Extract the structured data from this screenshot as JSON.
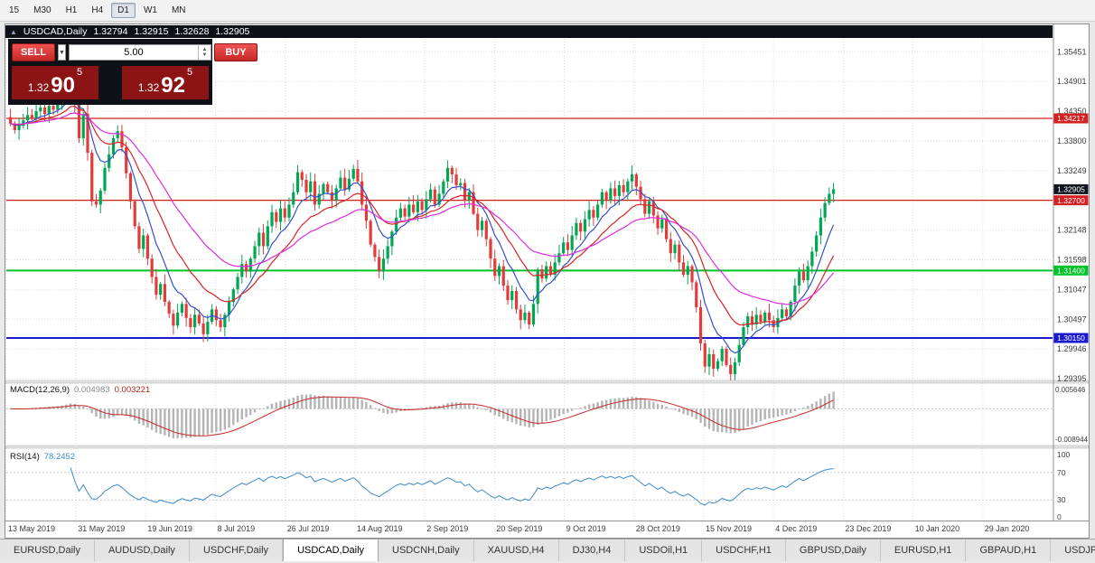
{
  "app": {
    "toolbar": {
      "timeframes": [
        {
          "label": "15",
          "active": false
        },
        {
          "label": "M30",
          "active": false
        },
        {
          "label": "H1",
          "active": false
        },
        {
          "label": "H4",
          "active": false
        },
        {
          "label": "D1",
          "active": true
        },
        {
          "label": "W1",
          "active": false
        },
        {
          "label": "MN",
          "active": false
        }
      ]
    }
  },
  "chart_header": {
    "symbol": "USDCAD,Daily",
    "open": "1.32794",
    "high": "1.32915",
    "low": "1.32628",
    "close": "1.32905"
  },
  "one_click": {
    "sell_label": "SELL",
    "buy_label": "BUY",
    "lot": "5.00",
    "bid": {
      "base": "1.32",
      "pips": "90",
      "point": "5"
    },
    "ask": {
      "base": "1.32",
      "pips": "92",
      "point": "5"
    }
  },
  "price_axis": {
    "ticks": [
      "1.35451",
      "1.34901",
      "1.34350",
      "1.33800",
      "1.33249",
      "1.32699",
      "1.32148",
      "1.31598",
      "1.31047",
      "1.30497",
      "1.29946",
      "1.29395"
    ]
  },
  "chart_data": {
    "type": "candlestick",
    "symbol": "USDCAD",
    "timeframe": "Daily",
    "price_min": 1.2938,
    "price_max": 1.3564,
    "up_color": "#00a651",
    "down_color": "#e23b3b",
    "closes": [
      1.3412,
      1.34,
      1.3408,
      1.3418,
      1.3428,
      1.3422,
      1.3435,
      1.3442,
      1.343,
      1.3445,
      1.3438,
      1.345,
      1.3462,
      1.3478,
      1.35,
      1.3448,
      1.3385,
      1.343,
      1.3358,
      1.3268,
      1.3262,
      1.3288,
      1.333,
      1.3355,
      1.3385,
      1.3398,
      1.3368,
      1.332,
      1.3268,
      1.3222,
      1.318,
      1.3205,
      1.3162,
      1.3128,
      1.3095,
      1.3115,
      1.3082,
      1.306,
      1.3038,
      1.3062,
      1.3078,
      1.3052,
      1.3035,
      1.3058,
      1.3042,
      1.3022,
      1.3045,
      1.3068,
      1.3048,
      1.3035,
      1.3058,
      1.3082,
      1.3105,
      1.3128,
      1.3152,
      1.3138,
      1.3162,
      1.3185,
      1.321,
      1.3185,
      1.3222,
      1.3248,
      1.323,
      1.3255,
      1.3238,
      1.3262,
      1.3285,
      1.3322,
      1.3308,
      1.3285,
      1.3305,
      1.3262,
      1.3282,
      1.33,
      1.3285,
      1.327,
      1.3292,
      1.3312,
      1.329,
      1.331,
      1.3328,
      1.3305,
      1.3262,
      1.3232,
      1.3188,
      1.3165,
      1.3138,
      1.3162,
      1.3185,
      1.3212,
      1.3238,
      1.3255,
      1.324,
      1.3262,
      1.3248,
      1.3268,
      1.3252,
      1.3272,
      1.329,
      1.3262,
      1.3282,
      1.3305,
      1.333,
      1.3318,
      1.3298,
      1.3302,
      1.327,
      1.3285,
      1.3245,
      1.3215,
      1.3232,
      1.3198,
      1.3162,
      1.313,
      1.3148,
      1.3112,
      1.3085,
      1.3102,
      1.3068,
      1.3048,
      1.3062,
      1.304,
      1.3078,
      1.3142,
      1.3125,
      1.3148,
      1.3132,
      1.3155,
      1.3172,
      1.3192,
      1.3178,
      1.3205,
      1.3228,
      1.3212,
      1.3235,
      1.3252,
      1.3238,
      1.3262,
      1.3285,
      1.327,
      1.3292,
      1.3278,
      1.3298,
      1.3285,
      1.3305,
      1.3318,
      1.3295,
      1.3272,
      1.3245,
      1.3268,
      1.3242,
      1.3218,
      1.3235,
      1.3198,
      1.3172,
      1.3188,
      1.3155,
      1.3132,
      1.3148,
      1.3118,
      1.3072,
      1.3005,
      1.2962,
      1.2985,
      1.2958,
      1.2972,
      1.2995,
      1.2965,
      1.2948,
      1.297,
      1.3002,
      1.3035,
      1.3055,
      1.304,
      1.3058,
      1.3045,
      1.3062,
      1.3048,
      1.3035,
      1.3052,
      1.3068,
      1.3055,
      1.3082,
      1.3112,
      1.3138,
      1.3122,
      1.3148,
      1.3175,
      1.3205,
      1.3238,
      1.3265,
      1.3282,
      1.32905
    ],
    "dates": [
      "13 May 2019",
      "31 May 2019",
      "19 Jun 2019",
      "8 Jul 2019",
      "26 Jul 2019",
      "14 Aug 2019",
      "2 Sep 2019",
      "20 Sep 2019",
      "9 Oct 2019",
      "28 Oct 2019",
      "15 Nov 2019",
      "4 Dec 2019",
      "23 Dec 2019",
      "10 Jan 2020",
      "29 Jan 2020"
    ],
    "levels": [
      {
        "value": 1.34217,
        "label": "1.34217",
        "color": "#d42020",
        "line_width": 1.2,
        "draw_line": true
      },
      {
        "value": 1.32905,
        "label": "1.32905",
        "color": "#11151f",
        "line_width": 0,
        "draw_line": false
      },
      {
        "value": 1.327,
        "label": "1.32700",
        "color": "#d42020",
        "line_width": 1.2,
        "draw_line": true
      },
      {
        "value": 1.314,
        "label": "1.31400",
        "color": "#00c32a",
        "line_width": 2,
        "draw_line": true
      },
      {
        "value": 1.3015,
        "label": "1.30150",
        "color": "#1a1acd",
        "line_width": 2,
        "draw_line": true
      }
    ],
    "moving_averages": [
      {
        "type": "ema",
        "period": 8,
        "color": "#3450c8"
      },
      {
        "type": "ema",
        "period": 17,
        "color": "#d82424"
      },
      {
        "type": "ema",
        "period": 34,
        "color": "#df2cdf"
      }
    ]
  },
  "macd": {
    "label": "MACD(12,26,9)",
    "main_value": "0.004983",
    "signal_value": "0.003221",
    "fast": 12,
    "slow": 26,
    "signal": 9,
    "ticks": [
      {
        "value": 0.005646,
        "label": "0.005646"
      },
      {
        "value": -0.008944,
        "label": "-0.008944"
      }
    ],
    "scale_max": 0.007,
    "scale_min": -0.0105,
    "histogram_color": "#b4b4b4",
    "signal_color": "#c62828"
  },
  "rsi": {
    "label": "RSI(14)",
    "value": "78.2452",
    "period": 14,
    "ticks": [
      {
        "value": 100,
        "label": "100"
      },
      {
        "value": 70,
        "label": "70"
      },
      {
        "value": 30,
        "label": "30"
      },
      {
        "value": 0,
        "label": "0"
      }
    ],
    "level_lines": [
      70,
      30
    ],
    "line_color": "#3f8ac9",
    "scale_min": 0,
    "scale_max": 100
  },
  "tabs": [
    {
      "label": "EURUSD,Daily",
      "active": false
    },
    {
      "label": "AUDUSD,Daily",
      "active": false
    },
    {
      "label": "USDCHF,Daily",
      "active": false
    },
    {
      "label": "USDCAD,Daily",
      "active": true
    },
    {
      "label": "USDCNH,Daily",
      "active": false
    },
    {
      "label": "XAUUSD,H4",
      "active": false
    },
    {
      "label": "DJ30,H4",
      "active": false
    },
    {
      "label": "USDOil,H1",
      "active": false
    },
    {
      "label": "USDCHF,H1",
      "active": false
    },
    {
      "label": "GBPUSD,Daily",
      "active": false
    },
    {
      "label": "EURUSD,H1",
      "active": false
    },
    {
      "label": "GBPAUD,H1",
      "active": false
    },
    {
      "label": "USDJPY,Daily",
      "active": false
    }
  ]
}
